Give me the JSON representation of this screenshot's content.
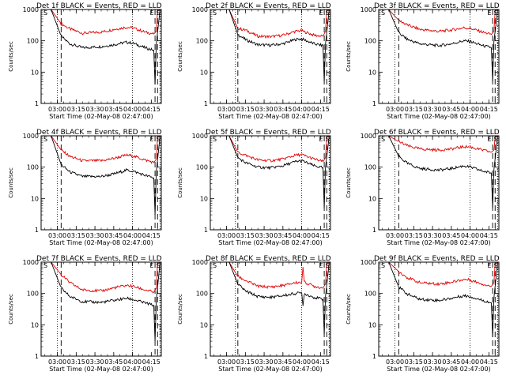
{
  "colors": {
    "events": "#000000",
    "lld": "#e00000",
    "background": "#ffffff",
    "frame": "#000000"
  },
  "chart_data": [
    {
      "type": "line",
      "title": "Det 1f BLACK = Events, RED = LLD",
      "xlabel": "Start Time (02-May-08 02:47:00)",
      "ylabel": "Counts/sec",
      "x_ticks": [
        "03:00",
        "03:15",
        "03:30",
        "03:45",
        "04:00",
        "04:15"
      ],
      "y_ticks": [
        "1",
        "10",
        "100",
        "1000"
      ],
      "xlim": [
        "02:47",
        "04:23"
      ],
      "ylim": [
        1,
        1000
      ],
      "yscale": "log",
      "corner_marks": [
        "S",
        "E",
        "S"
      ],
      "vlines_dotted": [
        "03:00",
        "04:00",
        "04:22"
      ],
      "vlines_dashed": [
        "03:03",
        "04:18",
        "04:20"
      ],
      "series": [
        {
          "color": "red",
          "x": [
            "02:47",
            "02:55",
            "03:03",
            "03:10",
            "03:20",
            "03:35",
            "03:45",
            "03:55",
            "04:00",
            "04:10",
            "04:17",
            "04:19",
            "04:20",
            "04:22"
          ],
          "y": [
            1000,
            1000,
            350,
            240,
            175,
            190,
            230,
            270,
            260,
            190,
            165,
            200,
            900,
            1000
          ]
        },
        {
          "color": "black",
          "x": [
            "02:47",
            "02:55",
            "03:03",
            "03:10",
            "03:20",
            "03:35",
            "03:45",
            "03:55",
            "04:00",
            "04:10",
            "04:17",
            "04:18",
            "04:19",
            "04:22"
          ],
          "y": [
            1000,
            1000,
            140,
            80,
            60,
            65,
            75,
            90,
            85,
            60,
            50,
            4,
            80,
            1000
          ]
        }
      ]
    },
    {
      "type": "line",
      "title": "Det 2f BLACK = Events, RED = LLD",
      "xlabel": "Start Time (02-May-08 02:47:00)",
      "ylabel": "Counts/sec",
      "x_ticks": [
        "03:00",
        "03:15",
        "03:30",
        "03:45",
        "04:00",
        "04:15"
      ],
      "y_ticks": [
        "1",
        "10",
        "100",
        "1000"
      ],
      "xlim": [
        "02:47",
        "04:23"
      ],
      "ylim": [
        1,
        1000
      ],
      "yscale": "log",
      "corner_marks": [
        "S",
        "E",
        "S"
      ],
      "vlines_dotted": [
        "03:07",
        "04:00",
        "04:22"
      ],
      "vlines_dashed": [
        "03:09",
        "04:18",
        "04:20"
      ],
      "series": [
        {
          "color": "red",
          "x": [
            "02:47",
            "03:02",
            "03:09",
            "03:15",
            "03:25",
            "03:35",
            "03:45",
            "03:55",
            "04:00",
            "04:10",
            "04:17",
            "04:19",
            "04:20",
            "04:22"
          ],
          "y": [
            1000,
            1000,
            250,
            220,
            140,
            135,
            150,
            200,
            210,
            150,
            140,
            200,
            900,
            1000
          ]
        },
        {
          "color": "black",
          "x": [
            "02:47",
            "03:02",
            "03:09",
            "03:15",
            "03:25",
            "03:35",
            "03:45",
            "03:55",
            "04:00",
            "04:10",
            "04:17",
            "04:18",
            "04:19",
            "04:22"
          ],
          "y": [
            1000,
            1000,
            160,
            110,
            75,
            72,
            80,
            110,
            115,
            80,
            70,
            5,
            80,
            1000
          ]
        }
      ]
    },
    {
      "type": "line",
      "title": "Det 3f BLACK = Events, RED = LLD",
      "xlabel": "Start Time (02-May-08 02:47:00)",
      "ylabel": "Counts/sec",
      "x_ticks": [
        "03:00",
        "03:15",
        "03:30",
        "03:45",
        "04:00",
        "04:15"
      ],
      "y_ticks": [
        "1",
        "10",
        "100",
        "1000"
      ],
      "xlim": [
        "02:47",
        "04:23"
      ],
      "ylim": [
        1,
        1000
      ],
      "yscale": "log",
      "corner_marks": [
        "S",
        "E",
        "S"
      ],
      "vlines_dotted": [
        "03:00",
        "04:00",
        "04:22"
      ],
      "vlines_dashed": [
        "03:03",
        "04:18",
        "04:20"
      ],
      "series": [
        {
          "color": "red",
          "x": [
            "02:47",
            "02:55",
            "03:03",
            "03:10",
            "03:20",
            "03:35",
            "03:45",
            "03:55",
            "04:00",
            "04:10",
            "04:17",
            "04:19",
            "04:20",
            "04:22"
          ],
          "y": [
            1000,
            1000,
            450,
            320,
            230,
            200,
            220,
            260,
            250,
            190,
            160,
            200,
            900,
            1000
          ]
        },
        {
          "color": "black",
          "x": [
            "02:47",
            "02:55",
            "03:03",
            "03:10",
            "03:20",
            "03:35",
            "03:45",
            "03:55",
            "04:00",
            "04:10",
            "04:17",
            "04:18",
            "04:19",
            "04:22"
          ],
          "y": [
            1000,
            1000,
            180,
            110,
            80,
            70,
            80,
            100,
            95,
            70,
            60,
            5,
            90,
            1000
          ]
        }
      ]
    },
    {
      "type": "line",
      "title": "Det 4f BLACK = Events, RED = LLD",
      "xlabel": "Start Time (02-May-08 02:47:00)",
      "ylabel": "Counts/sec",
      "x_ticks": [
        "03:00",
        "03:15",
        "03:30",
        "03:45",
        "04:00",
        "04:15"
      ],
      "y_ticks": [
        "1",
        "10",
        "100",
        "1000"
      ],
      "xlim": [
        "02:47",
        "04:23"
      ],
      "ylim": [
        1,
        1000
      ],
      "yscale": "log",
      "corner_marks": [
        "S",
        "E",
        "S"
      ],
      "vlines_dotted": [
        "03:00",
        "04:00",
        "04:22"
      ],
      "vlines_dashed": [
        "03:03",
        "04:18",
        "04:20"
      ],
      "series": [
        {
          "color": "red",
          "x": [
            "02:47",
            "02:55",
            "03:03",
            "03:10",
            "03:20",
            "03:35",
            "03:45",
            "03:55",
            "04:00",
            "04:10",
            "04:17",
            "04:19",
            "04:20",
            "04:22"
          ],
          "y": [
            1000,
            1000,
            350,
            220,
            160,
            160,
            190,
            240,
            230,
            170,
            140,
            180,
            900,
            1000
          ]
        },
        {
          "color": "black",
          "x": [
            "02:47",
            "02:55",
            "03:03",
            "03:10",
            "03:20",
            "03:35",
            "03:45",
            "03:55",
            "04:00",
            "04:10",
            "04:17",
            "04:18",
            "04:19",
            "04:22"
          ],
          "y": [
            1000,
            1000,
            120,
            70,
            50,
            50,
            60,
            80,
            75,
            55,
            45,
            3,
            70,
            1000
          ]
        }
      ]
    },
    {
      "type": "line",
      "title": "Det 5f BLACK = Events, RED = LLD",
      "xlabel": "Start Time (02-May-08 02:47:00)",
      "ylabel": "Counts/sec",
      "x_ticks": [
        "03:00",
        "03:15",
        "03:30",
        "03:45",
        "04:00",
        "04:15"
      ],
      "y_ticks": [
        "1",
        "10",
        "100",
        "1000"
      ],
      "xlim": [
        "02:47",
        "04:23"
      ],
      "ylim": [
        1,
        1000
      ],
      "yscale": "log",
      "corner_marks": [
        "S",
        "E",
        "S"
      ],
      "vlines_dotted": [
        "03:07",
        "04:00",
        "04:22"
      ],
      "vlines_dashed": [
        "03:09",
        "04:18",
        "04:20"
      ],
      "series": [
        {
          "color": "red",
          "x": [
            "02:47",
            "03:02",
            "03:09",
            "03:15",
            "03:25",
            "03:35",
            "03:45",
            "03:55",
            "04:00",
            "04:10",
            "04:17",
            "04:19",
            "04:20",
            "04:22"
          ],
          "y": [
            1000,
            1000,
            300,
            240,
            170,
            160,
            180,
            240,
            250,
            180,
            150,
            200,
            900,
            1000
          ]
        },
        {
          "color": "black",
          "x": [
            "02:47",
            "03:02",
            "03:09",
            "03:15",
            "03:25",
            "03:35",
            "03:45",
            "03:55",
            "04:00",
            "04:10",
            "04:17",
            "04:18",
            "04:19",
            "04:22"
          ],
          "y": [
            1000,
            1000,
            200,
            140,
            100,
            95,
            110,
            150,
            160,
            110,
            95,
            5,
            100,
            1000
          ]
        }
      ]
    },
    {
      "type": "line",
      "title": "Det 6f BLACK = Events, RED = LLD",
      "xlabel": "Start Time (02-May-08 02:47:00)",
      "ylabel": "Counts/sec",
      "x_ticks": [
        "03:00",
        "03:15",
        "03:30",
        "03:45",
        "04:00",
        "04:15"
      ],
      "y_ticks": [
        "1",
        "10",
        "100",
        "1000"
      ],
      "xlim": [
        "02:47",
        "04:23"
      ],
      "ylim": [
        1,
        1000
      ],
      "yscale": "log",
      "corner_marks": [
        "S",
        "E",
        "S"
      ],
      "vlines_dotted": [
        "03:00",
        "04:00",
        "04:22"
      ],
      "vlines_dashed": [
        "03:03",
        "04:18",
        "04:20"
      ],
      "series": [
        {
          "color": "red",
          "x": [
            "02:47",
            "02:55",
            "03:03",
            "03:10",
            "03:20",
            "03:35",
            "03:45",
            "03:55",
            "04:00",
            "04:10",
            "04:17",
            "04:19",
            "04:20",
            "04:22"
          ],
          "y": [
            1000,
            1000,
            650,
            480,
            380,
            350,
            380,
            450,
            440,
            350,
            300,
            350,
            900,
            1000
          ]
        },
        {
          "color": "black",
          "x": [
            "02:47",
            "02:55",
            "03:03",
            "03:10",
            "03:20",
            "03:35",
            "03:45",
            "03:55",
            "04:00",
            "04:10",
            "04:17",
            "04:18",
            "04:19",
            "04:22"
          ],
          "y": [
            1000,
            1000,
            220,
            130,
            90,
            80,
            90,
            110,
            100,
            75,
            65,
            5,
            80,
            1000
          ]
        }
      ]
    },
    {
      "type": "line",
      "title": "Det 7f BLACK = Events, RED = LLD",
      "xlabel": "Start Time (02-May-08 02:47:00)",
      "ylabel": "Counts/sec",
      "x_ticks": [
        "03:00",
        "03:15",
        "03:30",
        "03:45",
        "04:00",
        "04:15"
      ],
      "y_ticks": [
        "1",
        "10",
        "100",
        "1000"
      ],
      "xlim": [
        "02:47",
        "04:23"
      ],
      "ylim": [
        1,
        1000
      ],
      "yscale": "log",
      "corner_marks": [
        "S",
        "E",
        "S"
      ],
      "vlines_dotted": [
        "03:00",
        "04:00",
        "04:22"
      ],
      "vlines_dashed": [
        "03:03",
        "04:18",
        "04:20"
      ],
      "series": [
        {
          "color": "red",
          "x": [
            "02:47",
            "02:55",
            "03:03",
            "03:10",
            "03:20",
            "03:35",
            "03:45",
            "03:55",
            "04:00",
            "04:10",
            "04:17",
            "04:19",
            "04:20",
            "04:22"
          ],
          "y": [
            1000,
            1000,
            400,
            220,
            130,
            120,
            150,
            180,
            170,
            130,
            110,
            150,
            900,
            1000
          ]
        },
        {
          "color": "black",
          "x": [
            "02:47",
            "02:55",
            "03:03",
            "03:10",
            "03:20",
            "03:35",
            "03:45",
            "03:55",
            "04:00",
            "04:10",
            "04:17",
            "04:18",
            "04:19",
            "04:22"
          ],
          "y": [
            1000,
            1000,
            150,
            80,
            55,
            52,
            60,
            70,
            65,
            50,
            42,
            3,
            60,
            1000
          ]
        }
      ]
    },
    {
      "type": "line",
      "title": "Det 8f BLACK = Events, RED = LLD",
      "xlabel": "Start Time (02-May-08 02:47:00)",
      "ylabel": "Counts/sec",
      "x_ticks": [
        "03:00",
        "03:15",
        "03:30",
        "03:45",
        "04:00",
        "04:15"
      ],
      "y_ticks": [
        "1",
        "10",
        "100",
        "1000"
      ],
      "xlim": [
        "02:47",
        "04:23"
      ],
      "ylim": [
        1,
        1000
      ],
      "yscale": "log",
      "corner_marks": [
        "S",
        "E",
        "S"
      ],
      "vlines_dotted": [
        "03:07",
        "04:00",
        "04:22"
      ],
      "vlines_dashed": [
        "03:09",
        "04:18",
        "04:20"
      ],
      "series": [
        {
          "color": "red",
          "x": [
            "02:47",
            "03:02",
            "03:09",
            "03:15",
            "03:25",
            "03:35",
            "03:45",
            "03:55",
            "04:00",
            "04:01",
            "04:02",
            "04:10",
            "04:17",
            "04:19",
            "04:20",
            "04:22"
          ],
          "y": [
            1000,
            1000,
            350,
            260,
            170,
            160,
            180,
            220,
            230,
            700,
            230,
            170,
            150,
            200,
            900,
            1000
          ]
        },
        {
          "color": "black",
          "x": [
            "02:47",
            "03:02",
            "03:09",
            "03:15",
            "03:25",
            "03:35",
            "03:45",
            "03:55",
            "04:00",
            "04:01",
            "04:02",
            "04:10",
            "04:17",
            "04:18",
            "04:19",
            "04:22"
          ],
          "y": [
            1000,
            1000,
            200,
            120,
            80,
            75,
            85,
            100,
            105,
            40,
            100,
            75,
            65,
            5,
            80,
            1000
          ]
        }
      ]
    },
    {
      "type": "line",
      "title": "Det 9f BLACK = Events, RED = LLD",
      "xlabel": "Start Time (02-May-08 02:47:00)",
      "ylabel": "Counts/sec",
      "x_ticks": [
        "03:00",
        "03:15",
        "03:30",
        "03:45",
        "04:00",
        "04:15"
      ],
      "y_ticks": [
        "1",
        "10",
        "100",
        "1000"
      ],
      "xlim": [
        "02:47",
        "04:23"
      ],
      "ylim": [
        1,
        1000
      ],
      "yscale": "log",
      "corner_marks": [
        "S",
        "E",
        "S"
      ],
      "vlines_dotted": [
        "03:00",
        "04:00",
        "04:22"
      ],
      "vlines_dashed": [
        "03:03",
        "04:18",
        "04:20"
      ],
      "series": [
        {
          "color": "red",
          "x": [
            "02:47",
            "02:55",
            "03:03",
            "03:10",
            "03:20",
            "03:35",
            "03:45",
            "03:55",
            "04:00",
            "04:10",
            "04:17",
            "04:19",
            "04:20",
            "04:22"
          ],
          "y": [
            1000,
            1000,
            500,
            320,
            220,
            200,
            230,
            280,
            270,
            200,
            170,
            220,
            900,
            1000
          ]
        },
        {
          "color": "black",
          "x": [
            "02:47",
            "02:55",
            "03:03",
            "03:10",
            "03:20",
            "03:35",
            "03:45",
            "03:55",
            "04:00",
            "04:10",
            "04:17",
            "04:18",
            "04:19",
            "04:22"
          ],
          "y": [
            1000,
            1000,
            160,
            95,
            65,
            60,
            70,
            85,
            80,
            60,
            50,
            4,
            70,
            1000
          ]
        }
      ]
    }
  ]
}
